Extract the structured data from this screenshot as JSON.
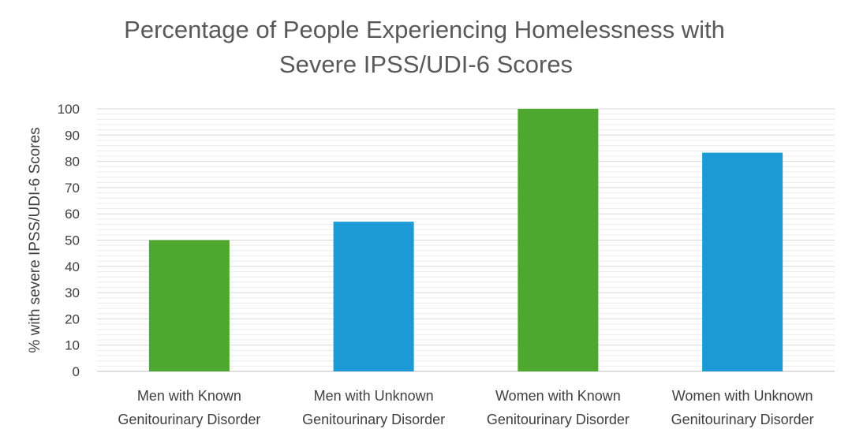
{
  "chart_data": {
    "type": "bar",
    "title_lines": [
      "Percentage of People Experiencing Homelessness with",
      "Severe IPSS/UDI-6 Scores"
    ],
    "xlabel": "",
    "ylabel": "% with severe IPSS/UDI-6 Scores",
    "ylim": [
      0,
      100
    ],
    "yticks": [
      0,
      10,
      20,
      30,
      40,
      50,
      60,
      70,
      80,
      90,
      100
    ],
    "ytick_labels": [
      "0",
      "10",
      "20",
      "30",
      "40",
      "50",
      "60",
      "70",
      "80",
      "90",
      "100"
    ],
    "grid": true,
    "categories": [
      [
        "Men with Known",
        "Genitourinary Disorder"
      ],
      [
        "Men with Unknown",
        "Genitourinary Disorder"
      ],
      [
        "Women with Known",
        "Genitourinary Disorder"
      ],
      [
        "Women with Unknown",
        "Genitourinary Disorder"
      ]
    ],
    "values": [
      50,
      57,
      100,
      83.3
    ],
    "bar_colors": [
      "#4ea72e",
      "#1b9ad6",
      "#4ea72e",
      "#1b9ad6"
    ],
    "grid_color": "#d9d9d9"
  }
}
